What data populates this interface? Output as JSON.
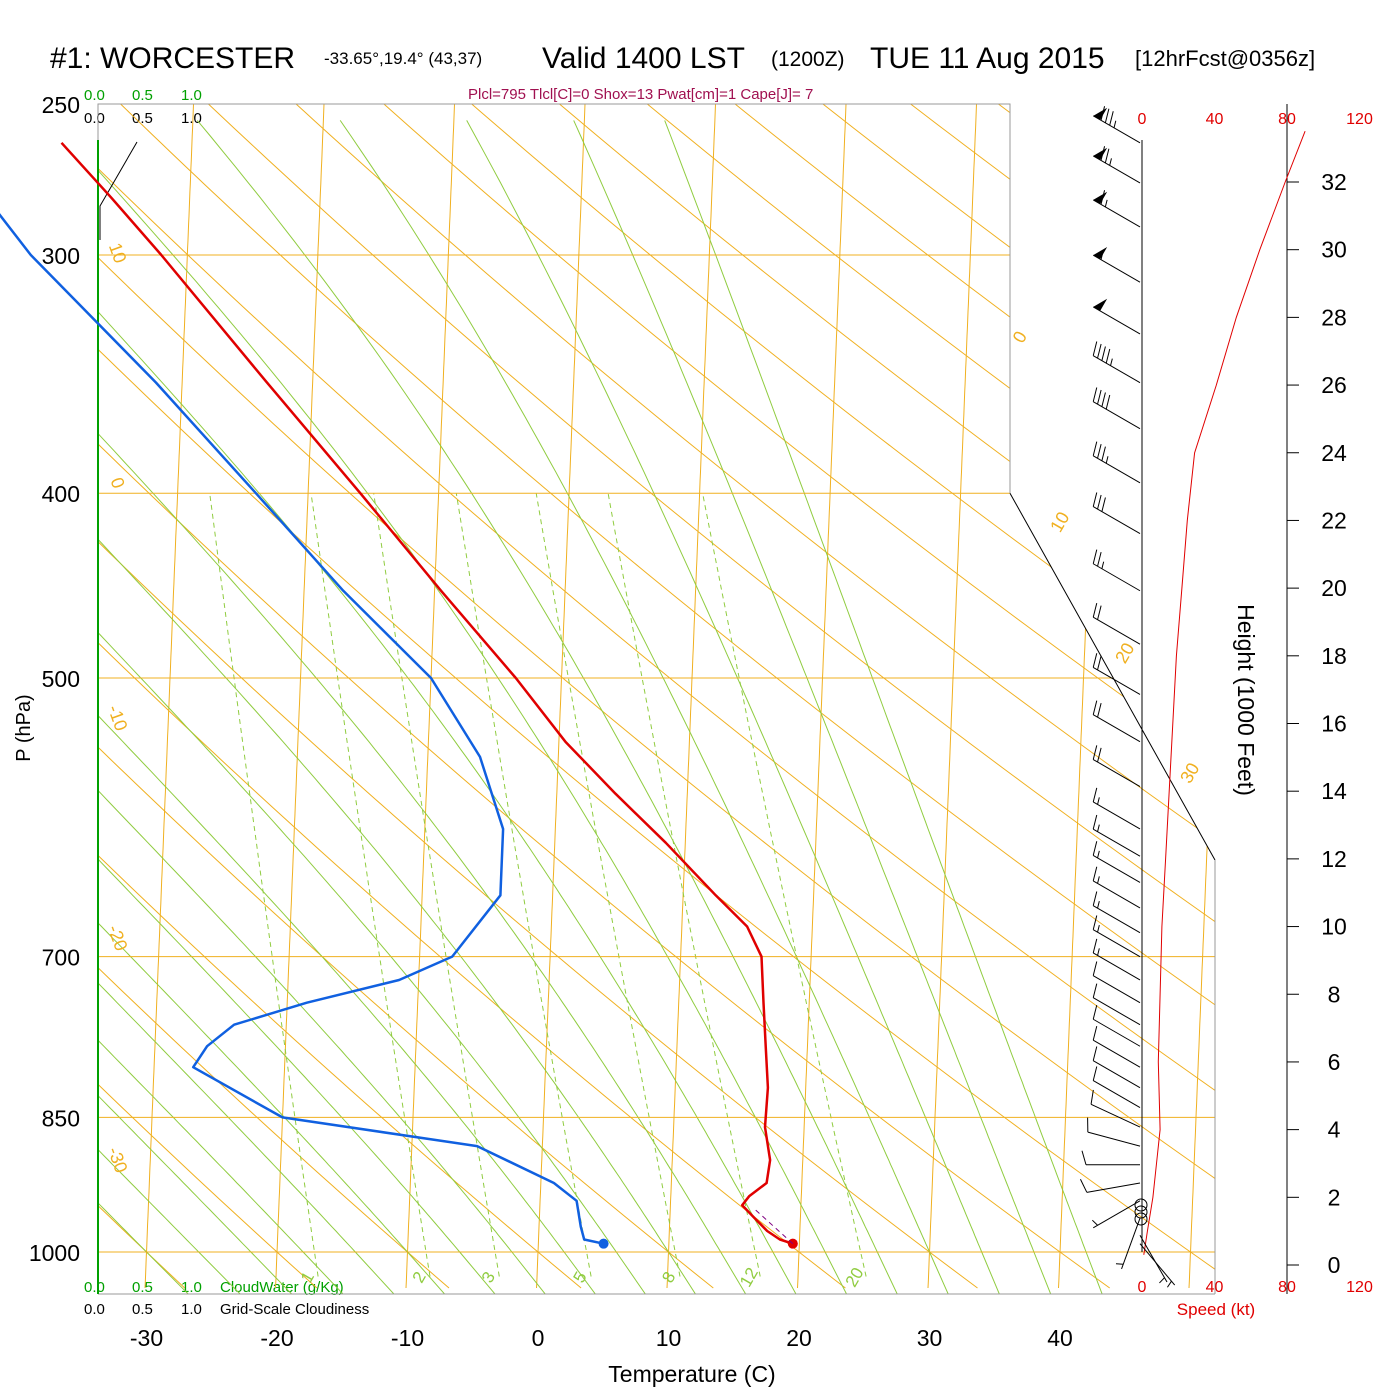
{
  "header": {
    "station": "#1: WORCESTER",
    "coords": "-33.65°,19.4° (43,37)",
    "valid_a": "Valid 1400 LST",
    "valid_b": "(1200Z)",
    "valid_c": "TUE 11 Aug 2015",
    "fcst": "[12hrFcst@0356z]",
    "indices": "Plcl=795 Tlcl[C]=0 Shox=13 Pwat[cm]=1 Cape[J]= 7"
  },
  "chart_data": {
    "type": "skew-t",
    "xlabel": "Temperature (C)",
    "ylabel": "P (hPa)",
    "height_label": "Height (1000 Feet)",
    "speed_label": "Speed (kt)",
    "x_ticks": [
      -30,
      -20,
      -10,
      0,
      10,
      20,
      30,
      40
    ],
    "pressure_ticks": [
      250,
      300,
      400,
      500,
      700,
      850,
      1000
    ],
    "height_ticks": [
      0,
      2,
      4,
      6,
      8,
      10,
      12,
      14,
      16,
      18,
      20,
      22,
      24,
      26,
      28,
      30,
      32
    ],
    "speed_ticks": [
      0,
      40,
      80,
      120
    ],
    "cloud_scale_green": [
      "0.0",
      "0.5",
      "1.0"
    ],
    "cloud_scale_black": [
      "0.0",
      "0.5",
      "1.0"
    ],
    "cloudwater_label": "CloudWater (g/Kg)",
    "cloudiness_label": "Grid-Scale Cloudiness",
    "isotherm_labels": [
      "10",
      "0",
      "-10",
      "-20",
      "-30",
      "0",
      "10",
      "20",
      "30"
    ],
    "mixing_ratio_labels": [
      "1",
      "2",
      "3",
      "5",
      "8",
      "12",
      "20"
    ],
    "temperature_profile": [
      {
        "p": 990,
        "t": 19.5
      },
      {
        "p": 985,
        "t": 18.5
      },
      {
        "p": 975,
        "t": 17.5
      },
      {
        "p": 960,
        "t": 16.5
      },
      {
        "p": 945,
        "t": 15.5
      },
      {
        "p": 935,
        "t": 16.0
      },
      {
        "p": 920,
        "t": 17.3
      },
      {
        "p": 895,
        "t": 17.5
      },
      {
        "p": 860,
        "t": 17.0
      },
      {
        "p": 820,
        "t": 17.1
      },
      {
        "p": 780,
        "t": 16.8
      },
      {
        "p": 740,
        "t": 16.5
      },
      {
        "p": 700,
        "t": 16.2
      },
      {
        "p": 675,
        "t": 15.0
      },
      {
        "p": 650,
        "t": 12.5
      },
      {
        "p": 610,
        "t": 8.5
      },
      {
        "p": 575,
        "t": 4.5
      },
      {
        "p": 540,
        "t": 0.5
      },
      {
        "p": 500,
        "t": -3.5
      },
      {
        "p": 450,
        "t": -9.5
      },
      {
        "p": 400,
        "t": -16.0
      },
      {
        "p": 350,
        "t": -23.5
      },
      {
        "p": 300,
        "t": -32.0
      },
      {
        "p": 280,
        "t": -36.0
      },
      {
        "p": 262,
        "t": -40.0
      }
    ],
    "dewpoint_profile": [
      {
        "p": 990,
        "t": 5.0
      },
      {
        "p": 985,
        "t": 3.5
      },
      {
        "p": 970,
        "t": 3.2
      },
      {
        "p": 940,
        "t": 2.8
      },
      {
        "p": 920,
        "t": 1.0
      },
      {
        "p": 880,
        "t": -5.0
      },
      {
        "p": 850,
        "t": -20.0
      },
      {
        "p": 800,
        "t": -27.0
      },
      {
        "p": 780,
        "t": -26.0
      },
      {
        "p": 760,
        "t": -24.0
      },
      {
        "p": 740,
        "t": -18.5
      },
      {
        "p": 720,
        "t": -11.5
      },
      {
        "p": 700,
        "t": -7.5
      },
      {
        "p": 650,
        "t": -4.0
      },
      {
        "p": 600,
        "t": -4.0
      },
      {
        "p": 550,
        "t": -6.0
      },
      {
        "p": 500,
        "t": -10.0
      },
      {
        "p": 450,
        "t": -17.0
      },
      {
        "p": 400,
        "t": -24.0
      },
      {
        "p": 350,
        "t": -32.0
      },
      {
        "p": 300,
        "t": -42.0
      },
      {
        "p": 275,
        "t": -46.5
      },
      {
        "p": 262,
        "t": -50.0
      }
    ],
    "surface_temperature": 19.5,
    "surface_dewpoint": 5.0,
    "wind_speed_profile": [
      {
        "h": 0.3,
        "s": 1
      },
      {
        "h": 1.0,
        "s": 3
      },
      {
        "h": 2.0,
        "s": 6
      },
      {
        "h": 3.0,
        "s": 8
      },
      {
        "h": 4.0,
        "s": 10
      },
      {
        "h": 6.0,
        "s": 9
      },
      {
        "h": 8.0,
        "s": 10
      },
      {
        "h": 10.0,
        "s": 11
      },
      {
        "h": 12.0,
        "s": 13
      },
      {
        "h": 14.0,
        "s": 15
      },
      {
        "h": 16.0,
        "s": 17
      },
      {
        "h": 18.0,
        "s": 19
      },
      {
        "h": 20.0,
        "s": 22
      },
      {
        "h": 22.0,
        "s": 25
      },
      {
        "h": 24.0,
        "s": 29
      },
      {
        "h": 26.0,
        "s": 41
      },
      {
        "h": 28.0,
        "s": 52
      },
      {
        "h": 30.0,
        "s": 65
      },
      {
        "h": 32.0,
        "s": 79
      },
      {
        "h": 33.5,
        "s": 90
      }
    ],
    "wind_barbs": [
      {
        "p": 990,
        "dir": 140,
        "spd": 5
      },
      {
        "p": 980,
        "dir": 150,
        "spd": 5
      },
      {
        "p": 960,
        "dir": 200,
        "spd": 5
      },
      {
        "p": 940,
        "dir": 240,
        "spd": 5
      },
      {
        "p": 920,
        "dir": 260,
        "spd": 10
      },
      {
        "p": 900,
        "dir": 270,
        "spd": 10
      },
      {
        "p": 880,
        "dir": 285,
        "spd": 10
      },
      {
        "p": 860,
        "dir": 295,
        "spd": 10
      },
      {
        "p": 840,
        "dir": 300,
        "spd": 10
      },
      {
        "p": 820,
        "dir": 300,
        "spd": 10
      },
      {
        "p": 800,
        "dir": 300,
        "spd": 10
      },
      {
        "p": 780,
        "dir": 300,
        "spd": 10
      },
      {
        "p": 760,
        "dir": 300,
        "spd": 10
      },
      {
        "p": 740,
        "dir": 300,
        "spd": 10
      },
      {
        "p": 720,
        "dir": 300,
        "spd": 15
      },
      {
        "p": 700,
        "dir": 300,
        "spd": 15
      },
      {
        "p": 680,
        "dir": 300,
        "spd": 15
      },
      {
        "p": 660,
        "dir": 300,
        "spd": 15
      },
      {
        "p": 640,
        "dir": 300,
        "spd": 15
      },
      {
        "p": 620,
        "dir": 300,
        "spd": 15
      },
      {
        "p": 600,
        "dir": 300,
        "spd": 15
      },
      {
        "p": 570,
        "dir": 300,
        "spd": 20
      },
      {
        "p": 540,
        "dir": 300,
        "spd": 20
      },
      {
        "p": 510,
        "dir": 300,
        "spd": 20
      },
      {
        "p": 480,
        "dir": 300,
        "spd": 20
      },
      {
        "p": 450,
        "dir": 300,
        "spd": 25
      },
      {
        "p": 420,
        "dir": 300,
        "spd": 30
      },
      {
        "p": 395,
        "dir": 300,
        "spd": 35
      },
      {
        "p": 370,
        "dir": 300,
        "spd": 40
      },
      {
        "p": 350,
        "dir": 300,
        "spd": 45
      },
      {
        "p": 330,
        "dir": 300,
        "spd": 50
      },
      {
        "p": 310,
        "dir": 300,
        "spd": 55
      },
      {
        "p": 290,
        "dir": 300,
        "spd": 65
      },
      {
        "p": 275,
        "dir": 300,
        "spd": 75
      },
      {
        "p": 262,
        "dir": 300,
        "spd": 85
      }
    ]
  },
  "colors": {
    "grid": "#F0B020",
    "adiabat_green": "#90CC40",
    "temperature": "#E00000",
    "dewpoint": "#1060E0",
    "speed": "#E00000",
    "indices": "#A01050",
    "cloud_green": "#00A000"
  }
}
